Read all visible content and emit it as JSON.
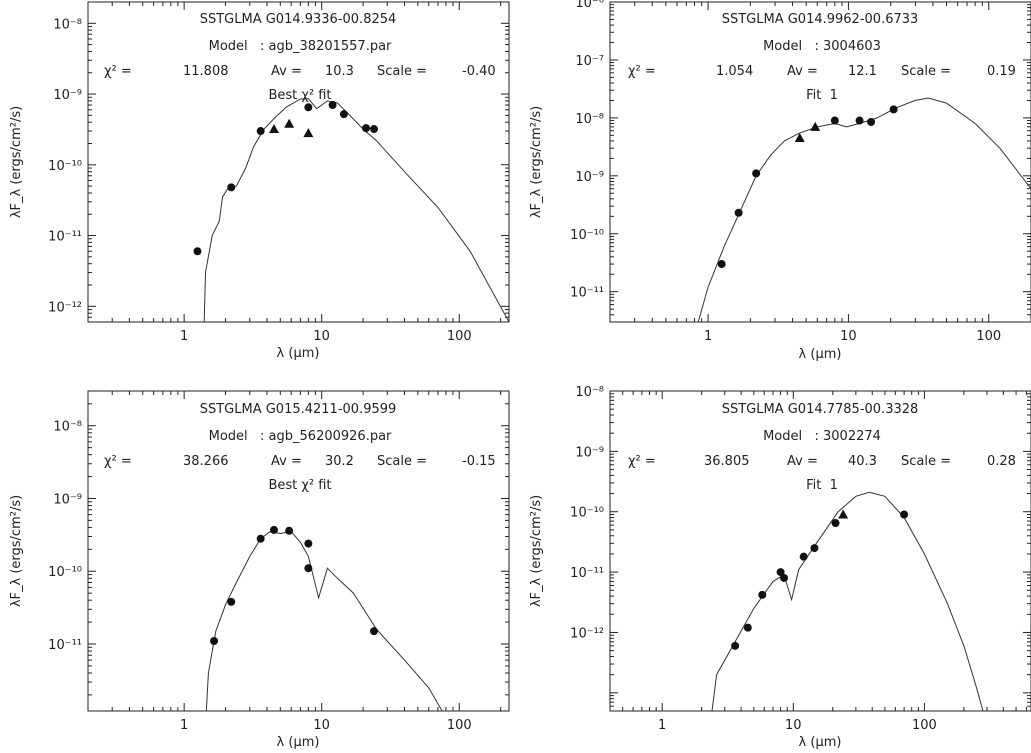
{
  "figure": {
    "axis_label_x": "λ (µm)",
    "axis_label_y": "λF_λ (ergs/cm²/s)"
  },
  "chart_data": [
    {
      "type": "scatter",
      "title": "SSTGLMA G014.9336-00.8254",
      "model": "Model   : agb_38201557.par",
      "chi2_label": "χ² =",
      "chi2": "11.808",
      "av_label": "Av =",
      "av": "10.3",
      "scale_label": "Scale =",
      "scale": "-0.40",
      "fit_label": "Best χ² fit",
      "xlabel": "λ (µm)",
      "ylabel": "λF_λ (ergs/cm²/s)",
      "xscale": "log",
      "yscale": "log",
      "xlim": [
        0.2,
        230
      ],
      "ylim": [
        6e-13,
        2e-08
      ],
      "xticklabels": [
        "1",
        "10",
        "100"
      ],
      "yticklabels": [
        "10⁻¹²",
        "10⁻¹¹",
        "10⁻¹⁰",
        "10⁻⁹",
        "10⁻⁸"
      ],
      "points": [
        [
          1.25,
          6e-12
        ],
        [
          2.2,
          4.8e-11
        ],
        [
          3.6,
          3e-10
        ],
        [
          8.0,
          6.5e-10
        ],
        [
          12,
          7e-10
        ],
        [
          14.5,
          5.2e-10
        ],
        [
          21,
          3.3e-10
        ],
        [
          24,
          3.2e-10
        ]
      ],
      "upper_limits": [
        [
          4.5,
          3.2e-10
        ],
        [
          5.8,
          3.8e-10
        ],
        [
          8.0,
          2.8e-10
        ]
      ],
      "model_curve": [
        [
          1.4,
          6e-13
        ],
        [
          1.43,
          3e-12
        ],
        [
          1.6,
          1e-11
        ],
        [
          1.8,
          1.6e-11
        ],
        [
          1.9,
          3.5e-11
        ],
        [
          2.1,
          4.8e-11
        ],
        [
          2.4,
          5e-11
        ],
        [
          2.8,
          9e-11
        ],
        [
          3.2,
          1.8e-10
        ],
        [
          3.8,
          3.2e-10
        ],
        [
          4.5,
          4.5e-10
        ],
        [
          5.5,
          6.5e-10
        ],
        [
          7,
          8.5e-10
        ],
        [
          8,
          8.6e-10
        ],
        [
          9.2,
          6.2e-10
        ],
        [
          11,
          8e-10
        ],
        [
          13,
          7.5e-10
        ],
        [
          16,
          5e-10
        ],
        [
          20,
          3.2e-10
        ],
        [
          25,
          2.2e-10
        ],
        [
          40,
          8e-11
        ],
        [
          70,
          2.5e-11
        ],
        [
          120,
          6e-12
        ],
        [
          230,
          6e-13
        ]
      ]
    },
    {
      "type": "scatter",
      "title": "SSTGLMA G014.9962-00.6733",
      "model": "Model   : 3004603",
      "chi2_label": "χ² =",
      "chi2": "1.054",
      "av_label": "Av =",
      "av": "12.1",
      "scale_label": "Scale =",
      "scale": "0.19",
      "fit_label": "Fit  1",
      "xlabel": "λ (µm)",
      "ylabel": "λF_λ (ergs/cm²/s)",
      "xscale": "log",
      "yscale": "log",
      "xlim": [
        0.2,
        200
      ],
      "ylim": [
        3e-12,
        1e-06
      ],
      "xticklabels": [
        "1",
        "10",
        "100"
      ],
      "yticklabels": [
        "10⁻¹¹",
        "10⁻¹⁰",
        "10⁻⁹",
        "10⁻⁸",
        "10⁻⁷",
        "10⁻⁶"
      ],
      "points": [
        [
          1.25,
          3e-11
        ],
        [
          1.65,
          2.3e-10
        ],
        [
          2.2,
          1.1e-09
        ],
        [
          8.0,
          9e-09
        ],
        [
          12,
          9e-09
        ],
        [
          14.5,
          8.5e-09
        ],
        [
          21,
          1.4e-08
        ]
      ],
      "upper_limits": [
        [
          4.5,
          4.5e-09
        ],
        [
          5.8,
          7e-09
        ]
      ],
      "model_curve": [
        [
          0.85,
          3e-12
        ],
        [
          1.0,
          1.2e-11
        ],
        [
          1.3,
          6e-11
        ],
        [
          1.7,
          2.5e-10
        ],
        [
          2.2,
          1e-09
        ],
        [
          2.8,
          2.3e-09
        ],
        [
          3.5,
          4e-09
        ],
        [
          4.5,
          5.5e-09
        ],
        [
          6,
          7e-09
        ],
        [
          8,
          8e-09
        ],
        [
          9.7,
          7e-09
        ],
        [
          12,
          8e-09
        ],
        [
          16,
          1e-08
        ],
        [
          22,
          1.5e-08
        ],
        [
          30,
          2e-08
        ],
        [
          37,
          2.2e-08
        ],
        [
          50,
          1.8e-08
        ],
        [
          80,
          8e-09
        ],
        [
          120,
          3e-09
        ],
        [
          200,
          6e-10
        ]
      ]
    },
    {
      "type": "scatter",
      "title": "SSTGLMA G015.4211-00.9599",
      "model": "Model   : agb_56200926.par",
      "chi2_label": "χ² =",
      "chi2": "38.266",
      "av_label": "Av =",
      "av": "30.2",
      "scale_label": "Scale =",
      "scale": "-0.15",
      "fit_label": "Best χ² fit",
      "xlabel": "λ (µm)",
      "ylabel": "λF_λ (ergs/cm²/s)",
      "xscale": "log",
      "yscale": "log",
      "xlim": [
        0.2,
        230
      ],
      "ylim": [
        1.2e-12,
        3e-08
      ],
      "xticklabels": [
        "1",
        "10",
        "100"
      ],
      "yticklabels": [
        "10⁻¹¹",
        "10⁻¹⁰",
        "10⁻⁹",
        "10⁻⁸"
      ],
      "points": [
        [
          1.65,
          1.1e-11
        ],
        [
          2.2,
          3.8e-11
        ],
        [
          3.6,
          2.8e-10
        ],
        [
          4.5,
          3.7e-10
        ],
        [
          5.8,
          3.6e-10
        ],
        [
          8.0,
          2.4e-10
        ],
        [
          8.0,
          1.1e-10
        ],
        [
          24,
          1.5e-11
        ]
      ],
      "upper_limits": [],
      "model_curve": [
        [
          1.45,
          1.2e-12
        ],
        [
          1.5,
          4e-12
        ],
        [
          1.7,
          1.5e-11
        ],
        [
          2.0,
          3.5e-11
        ],
        [
          2.4,
          7e-11
        ],
        [
          3.0,
          1.6e-10
        ],
        [
          3.6,
          2.8e-10
        ],
        [
          4.2,
          3.5e-10
        ],
        [
          5,
          3.3e-10
        ],
        [
          6,
          3.5e-10
        ],
        [
          7,
          2.5e-10
        ],
        [
          8,
          1.6e-10
        ],
        [
          9.5,
          4.3e-11
        ],
        [
          11,
          1.1e-10
        ],
        [
          13,
          8e-11
        ],
        [
          17,
          5e-11
        ],
        [
          25,
          1.6e-11
        ],
        [
          40,
          6e-12
        ],
        [
          60,
          2.5e-12
        ],
        [
          75,
          1.2e-12
        ]
      ]
    },
    {
      "type": "scatter",
      "title": "SSTGLMA G014.7785-00.3328",
      "model": "Model   : 3002274",
      "chi2_label": "χ² =",
      "chi2": "36.805",
      "av_label": "Av =",
      "av": "40.3",
      "scale_label": "Scale =",
      "scale": "0.28",
      "fit_label": "Fit  1",
      "xlabel": "λ (µm)",
      "ylabel": "λF_λ (ergs/cm²/s)",
      "xscale": "log",
      "yscale": "log",
      "xlim": [
        0.4,
        650
      ],
      "ylim": [
        5e-13,
        1e-07
      ],
      "xticklabels": [
        "1",
        "10",
        "100"
      ],
      "yticklabels": [
        "10⁻¹²",
        "10⁻¹¹",
        "10⁻¹⁰",
        "10⁻⁹",
        "10⁻⁸"
      ],
      "points": [
        [
          3.6,
          6e-12
        ],
        [
          4.5,
          1.2e-11
        ],
        [
          5.8,
          4.2e-11
        ],
        [
          8.0,
          1e-10
        ],
        [
          8.5,
          8e-11
        ],
        [
          12,
          1.8e-10
        ],
        [
          14.5,
          2.5e-10
        ],
        [
          21,
          6.5e-10
        ],
        [
          70,
          9e-10
        ]
      ],
      "upper_limits": [
        [
          24,
          9e-10
        ]
      ],
      "model_curve": [
        [
          2.4,
          5e-13
        ],
        [
          2.6,
          2e-12
        ],
        [
          3.6,
          7e-12
        ],
        [
          5,
          2.5e-11
        ],
        [
          7,
          7e-11
        ],
        [
          8.5,
          9e-11
        ],
        [
          9.7,
          3.5e-11
        ],
        [
          11,
          1.1e-10
        ],
        [
          15,
          3e-10
        ],
        [
          22,
          1e-09
        ],
        [
          30,
          1.8e-09
        ],
        [
          38,
          2.1e-09
        ],
        [
          50,
          1.8e-09
        ],
        [
          70,
          8e-10
        ],
        [
          100,
          2e-10
        ],
        [
          150,
          3e-11
        ],
        [
          200,
          6e-12
        ],
        [
          250,
          1.2e-12
        ],
        [
          280,
          5e-13
        ]
      ]
    }
  ]
}
